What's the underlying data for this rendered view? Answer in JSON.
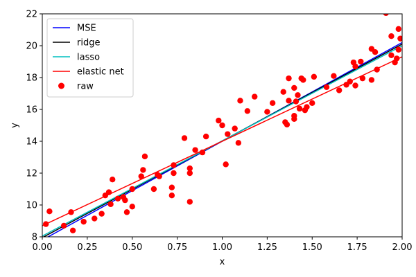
{
  "chart_data": {
    "type": "line",
    "xlabel": "x",
    "ylabel": "y",
    "xlim": [
      0,
      2
    ],
    "ylim": [
      8,
      22
    ],
    "xticks": [
      "0.00",
      "0.25",
      "0.50",
      "0.75",
      "1.00",
      "1.25",
      "1.50",
      "1.75",
      "2.00"
    ],
    "yticks": [
      "8",
      "10",
      "12",
      "14",
      "16",
      "18",
      "20",
      "22"
    ],
    "legend_position": "upper-left",
    "grid": false,
    "series": [
      {
        "name": "MSE",
        "kind": "line",
        "color": "#0000ff",
        "x": [
          0,
          2
        ],
        "y": [
          7.8,
          20.2
        ]
      },
      {
        "name": "ridge",
        "kind": "line",
        "color": "#000000",
        "x": [
          0,
          2
        ],
        "y": [
          7.95,
          20.1
        ]
      },
      {
        "name": "lasso",
        "kind": "line",
        "color": "#00bfbf",
        "x": [
          0,
          2
        ],
        "y": [
          8.05,
          20.0
        ]
      },
      {
        "name": "elastic net",
        "kind": "line",
        "color": "#ff0000",
        "x": [
          0,
          2
        ],
        "y": [
          8.7,
          19.3
        ]
      },
      {
        "name": "raw",
        "kind": "scatter",
        "color": "#ff0000",
        "points": [
          [
            0.02,
            8.8
          ],
          [
            0.04,
            9.6
          ],
          [
            0.12,
            8.7
          ],
          [
            0.16,
            9.55
          ],
          [
            0.17,
            8.4
          ],
          [
            0.23,
            8.95
          ],
          [
            0.29,
            9.15
          ],
          [
            0.33,
            9.45
          ],
          [
            0.35,
            10.6
          ],
          [
            0.37,
            10.8
          ],
          [
            0.38,
            10.05
          ],
          [
            0.39,
            11.6
          ],
          [
            0.42,
            10.4
          ],
          [
            0.45,
            10.5
          ],
          [
            0.46,
            10.3
          ],
          [
            0.47,
            9.55
          ],
          [
            0.5,
            9.9
          ],
          [
            0.5,
            11.0
          ],
          [
            0.55,
            11.8
          ],
          [
            0.56,
            12.2
          ],
          [
            0.57,
            13.05
          ],
          [
            0.62,
            11.0
          ],
          [
            0.64,
            11.9
          ],
          [
            0.65,
            11.8
          ],
          [
            0.72,
            10.6
          ],
          [
            0.72,
            11.1
          ],
          [
            0.73,
            12.5
          ],
          [
            0.73,
            12.0
          ],
          [
            0.79,
            14.2
          ],
          [
            0.82,
            12.3
          ],
          [
            0.82,
            12.0
          ],
          [
            0.82,
            10.2
          ],
          [
            0.85,
            13.45
          ],
          [
            0.89,
            13.3
          ],
          [
            0.91,
            14.3
          ],
          [
            0.98,
            15.3
          ],
          [
            1.0,
            15.0
          ],
          [
            1.02,
            12.55
          ],
          [
            1.03,
            14.45
          ],
          [
            1.07,
            14.8
          ],
          [
            1.09,
            13.9
          ],
          [
            1.1,
            16.55
          ],
          [
            1.14,
            15.9
          ],
          [
            1.18,
            16.8
          ],
          [
            1.25,
            15.85
          ],
          [
            1.28,
            16.4
          ],
          [
            1.34,
            17.1
          ],
          [
            1.35,
            15.2
          ],
          [
            1.36,
            15.05
          ],
          [
            1.37,
            16.55
          ],
          [
            1.37,
            17.95
          ],
          [
            1.4,
            17.35
          ],
          [
            1.4,
            15.6
          ],
          [
            1.4,
            15.4
          ],
          [
            1.41,
            16.5
          ],
          [
            1.42,
            16.9
          ],
          [
            1.43,
            16.05
          ],
          [
            1.44,
            17.95
          ],
          [
            1.45,
            17.85
          ],
          [
            1.46,
            15.95
          ],
          [
            1.47,
            16.15
          ],
          [
            1.5,
            16.4
          ],
          [
            1.51,
            18.05
          ],
          [
            1.58,
            17.4
          ],
          [
            1.62,
            18.1
          ],
          [
            1.65,
            17.2
          ],
          [
            1.69,
            17.55
          ],
          [
            1.71,
            17.75
          ],
          [
            1.73,
            18.95
          ],
          [
            1.74,
            18.7
          ],
          [
            1.74,
            17.5
          ],
          [
            1.77,
            19.0
          ],
          [
            1.78,
            17.95
          ],
          [
            1.83,
            17.85
          ],
          [
            1.83,
            19.8
          ],
          [
            1.85,
            19.6
          ],
          [
            1.86,
            18.5
          ],
          [
            1.91,
            22.05
          ],
          [
            1.94,
            20.6
          ],
          [
            1.94,
            19.4
          ],
          [
            1.96,
            18.95
          ],
          [
            1.97,
            19.2
          ],
          [
            1.98,
            21.05
          ],
          [
            1.98,
            19.75
          ],
          [
            1.99,
            20.45
          ]
        ]
      }
    ]
  }
}
